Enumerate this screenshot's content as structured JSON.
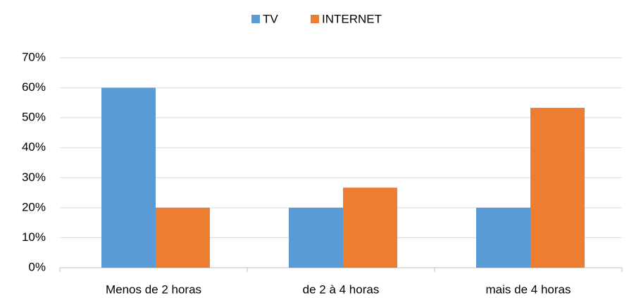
{
  "chart_data": {
    "type": "bar",
    "categories": [
      "Menos de 2 horas",
      "de 2 à 4 horas",
      "mais de 4 horas"
    ],
    "series": [
      {
        "name": "TV",
        "color": "#5b9bd5",
        "values": [
          60,
          20,
          20
        ]
      },
      {
        "name": "INTERNET",
        "color": "#ed7d31",
        "values": [
          20,
          26.7,
          53.3
        ]
      }
    ],
    "ylim": [
      0,
      70
    ],
    "yticks": [
      {
        "value": 0,
        "label": "0%"
      },
      {
        "value": 10,
        "label": "10%"
      },
      {
        "value": 20,
        "label": "20%"
      },
      {
        "value": 30,
        "label": "30%"
      },
      {
        "value": 40,
        "label": "40%"
      },
      {
        "value": 50,
        "label": "50%"
      },
      {
        "value": 60,
        "label": "60%"
      },
      {
        "value": 70,
        "label": "70%"
      }
    ],
    "grid": true,
    "legend": "top"
  }
}
